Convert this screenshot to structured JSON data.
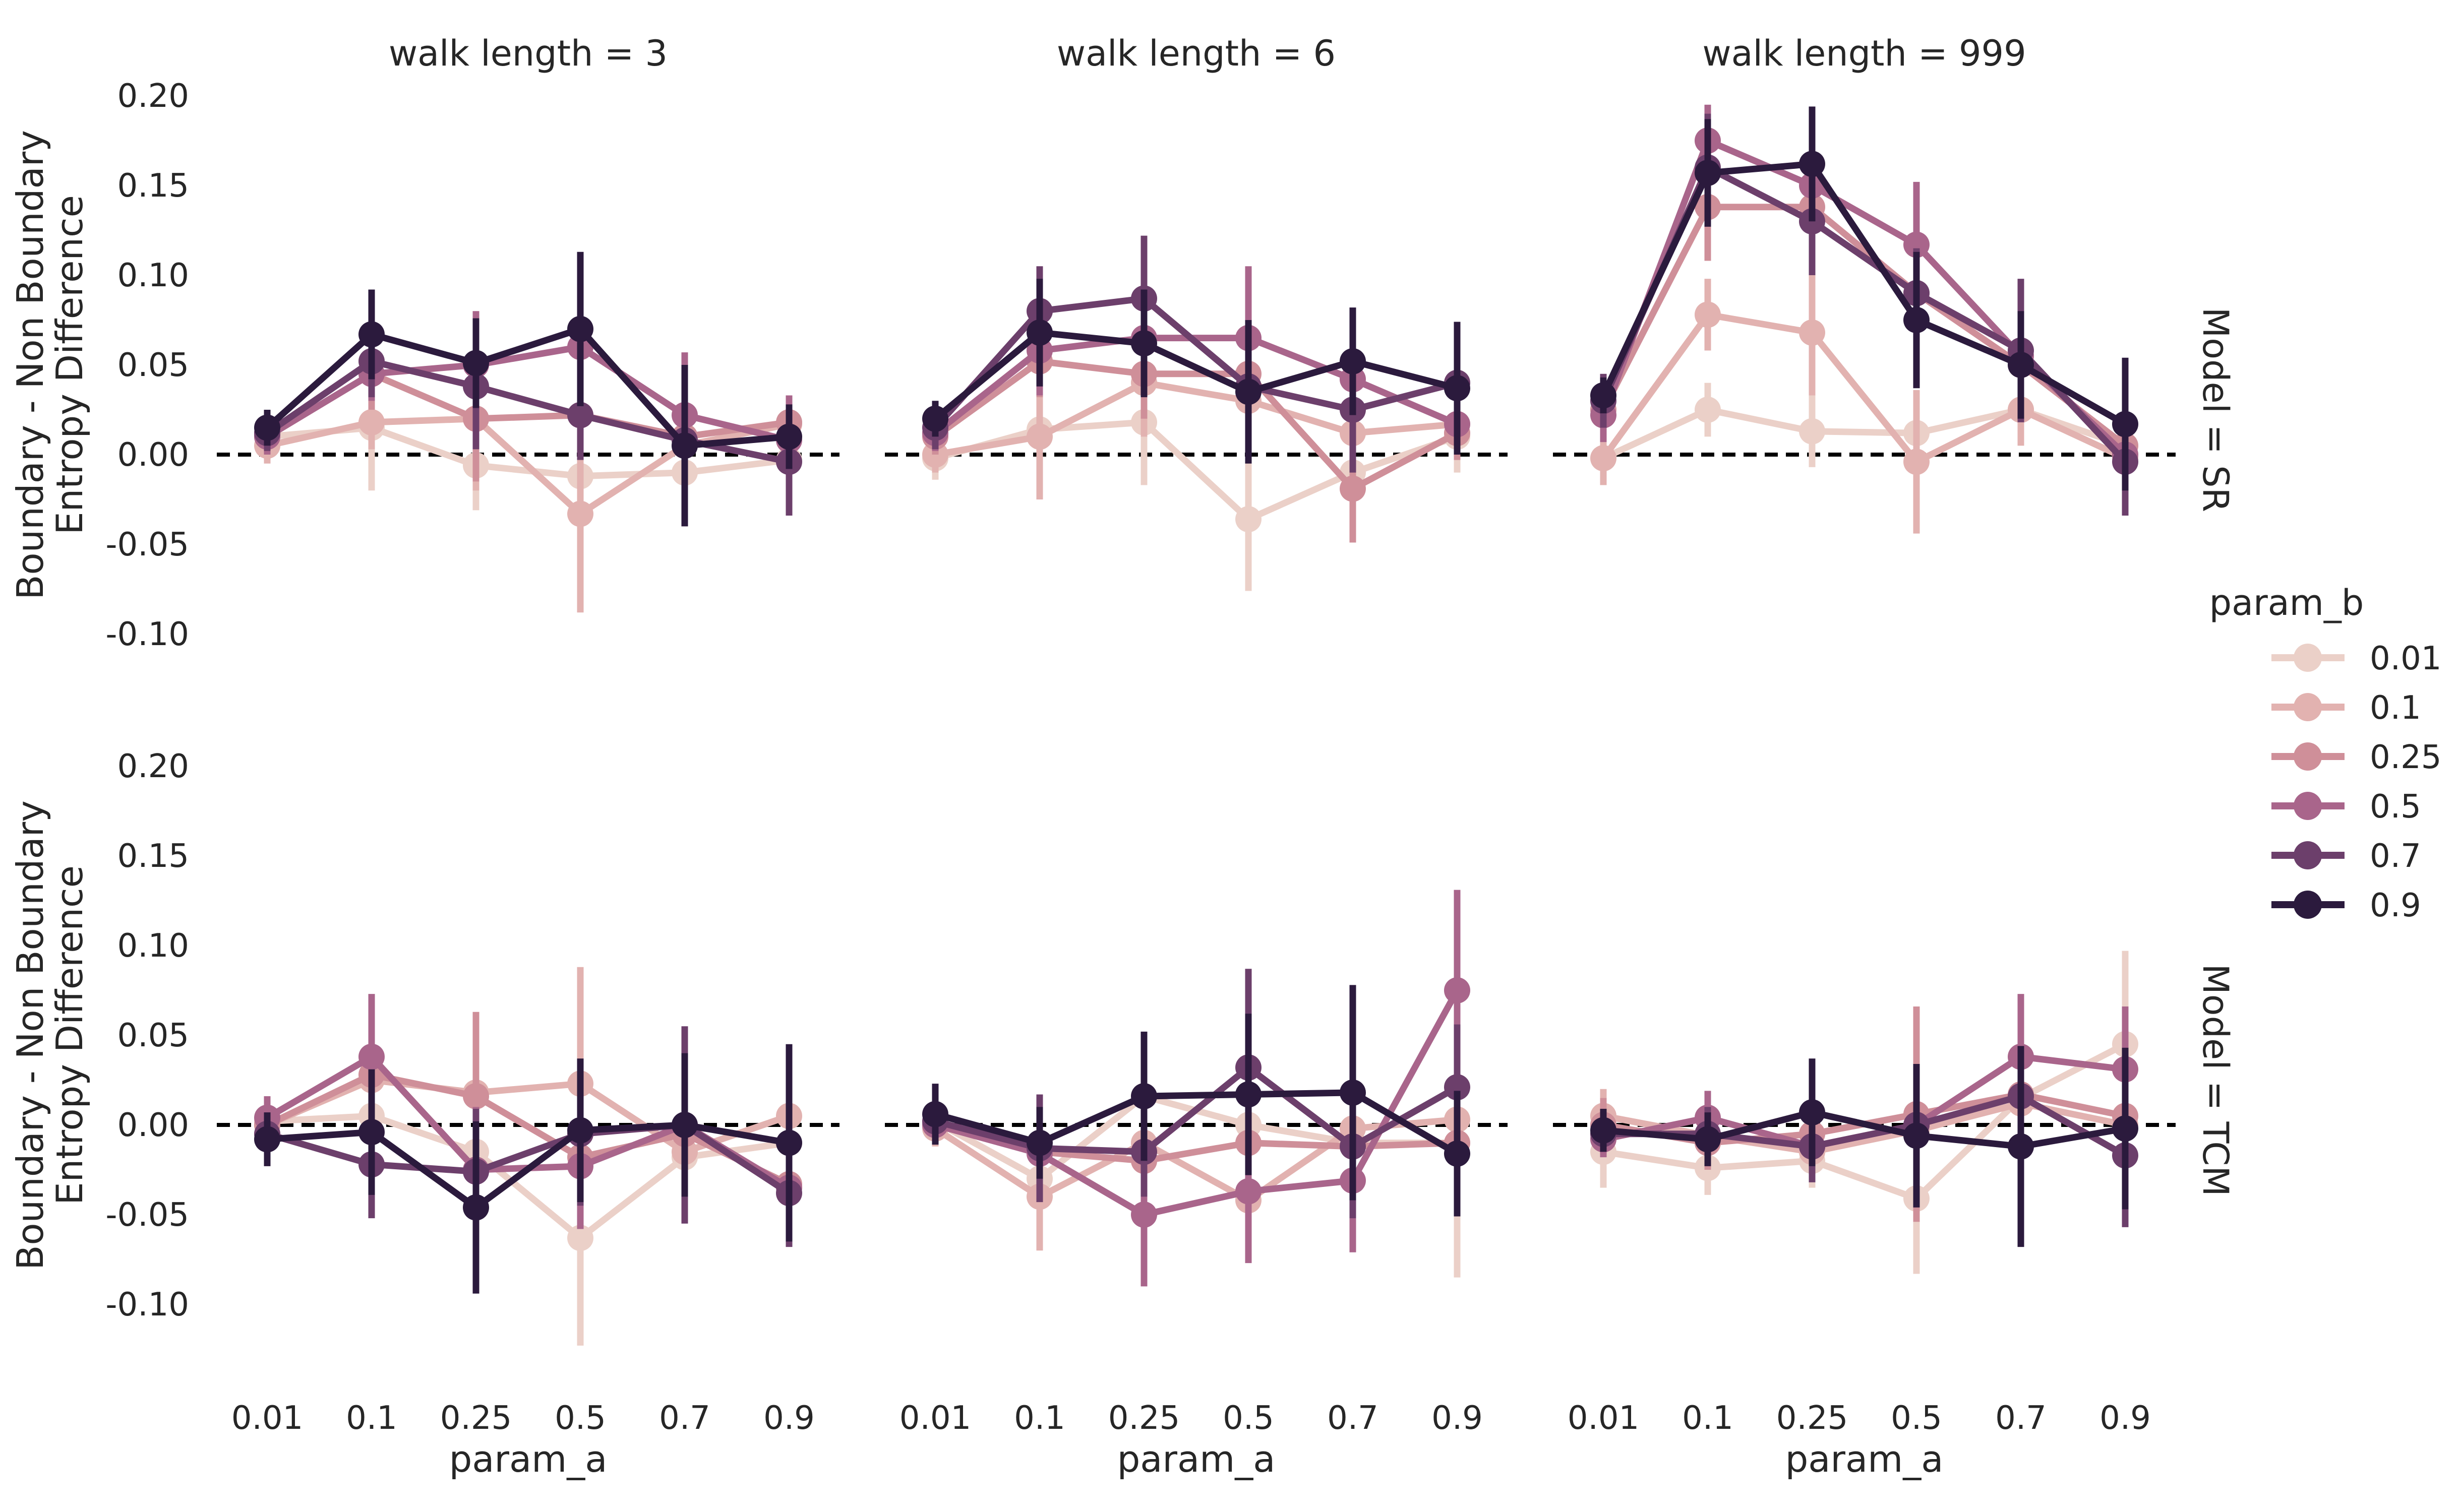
{
  "chart_data": {
    "type": "line",
    "x_label": "param_a",
    "y_label_lines": [
      "Boundary - Non Boundary",
      "Entropy Difference"
    ],
    "x_categories": [
      "0.01",
      "0.1",
      "0.25",
      "0.5",
      "0.7",
      "0.9"
    ],
    "y_ticks": [
      "0.20",
      "0.15",
      "0.10",
      "0.05",
      "0.00",
      "-0.05",
      "-0.10"
    ],
    "y_tick_values": [
      0.2,
      0.15,
      0.1,
      0.05,
      0.0,
      -0.05,
      -0.1
    ],
    "ylim": [
      -0.13,
      0.2
    ],
    "reference_line": 0.0,
    "legend": {
      "title": "param_b",
      "placement": "right",
      "entries": [
        "0.01",
        "0.1",
        "0.25",
        "0.5",
        "0.7",
        "0.9"
      ],
      "colors": [
        "#ebd0c8",
        "#e2b2b0",
        "#cf8f99",
        "#a9658b",
        "#6c3f6b",
        "#2b1a3d"
      ]
    },
    "columns": [
      "walk length = 3",
      "walk length = 6",
      "walk length = 999"
    ],
    "rows": [
      "Model = SR",
      "Model = TCM"
    ],
    "panels": [
      {
        "column": "walk length = 3",
        "row": "Model = SR",
        "series": [
          {
            "name": "0.01",
            "values": [
              0.01,
              0.015,
              -0.006,
              -0.012,
              -0.01,
              -0.003
            ],
            "err": [
              0.008,
              0.035,
              0.025,
              0.03,
              0.03,
              0.012
            ]
          },
          {
            "name": "0.1",
            "values": [
              0.005,
              0.018,
              0.02,
              -0.033,
              0.005,
              0.017
            ],
            "err": [
              0.01,
              0.015,
              0.04,
              0.055,
              0.015,
              0.015
            ]
          },
          {
            "name": "0.25",
            "values": [
              0.01,
              0.045,
              0.02,
              0.022,
              0.01,
              0.018
            ],
            "err": [
              0.01,
              0.02,
              0.035,
              0.02,
              0.015,
              0.01
            ]
          },
          {
            "name": "0.5",
            "values": [
              0.01,
              0.045,
              0.05,
              0.06,
              0.022,
              0.008
            ],
            "err": [
              0.01,
              0.015,
              0.03,
              0.025,
              0.035,
              0.025
            ]
          },
          {
            "name": "0.7",
            "values": [
              0.012,
              0.052,
              0.038,
              0.022,
              0.008,
              -0.004
            ],
            "err": [
              0.01,
              0.02,
              0.035,
              0.025,
              0.03,
              0.03
            ]
          },
          {
            "name": "0.9",
            "values": [
              0.015,
              0.067,
              0.051,
              0.07,
              0.005,
              0.01
            ],
            "err": [
              0.01,
              0.025,
              0.025,
              0.043,
              0.045,
              0.018
            ]
          }
        ]
      },
      {
        "column": "walk length = 6",
        "row": "Model = SR",
        "series": [
          {
            "name": "0.01",
            "values": [
              -0.002,
              0.014,
              0.018,
              -0.036,
              -0.01,
              0.01
            ],
            "err": [
              0.012,
              0.025,
              0.035,
              0.04,
              0.03,
              0.02
            ]
          },
          {
            "name": "0.1",
            "values": [
              0.0,
              0.01,
              0.04,
              0.03,
              0.012,
              0.017
            ],
            "err": [
              0.01,
              0.035,
              0.03,
              0.03,
              0.025,
              0.02
            ]
          },
          {
            "name": "0.25",
            "values": [
              0.01,
              0.052,
              0.045,
              0.045,
              -0.019,
              0.012
            ],
            "err": [
              0.01,
              0.02,
              0.025,
              0.03,
              0.03,
              0.015
            ]
          },
          {
            "name": "0.5",
            "values": [
              0.012,
              0.058,
              0.065,
              0.065,
              0.042,
              0.017
            ],
            "err": [
              0.01,
              0.025,
              0.03,
              0.04,
              0.02,
              0.015
            ]
          },
          {
            "name": "0.7",
            "values": [
              0.015,
              0.08,
              0.087,
              0.038,
              0.025,
              0.04
            ],
            "err": [
              0.012,
              0.025,
              0.035,
              0.03,
              0.035,
              0.02
            ]
          },
          {
            "name": "0.9",
            "values": [
              0.02,
              0.068,
              0.062,
              0.035,
              0.052,
              0.037
            ],
            "err": [
              0.01,
              0.03,
              0.03,
              0.04,
              0.03,
              0.037
            ]
          }
        ]
      },
      {
        "column": "walk length = 999",
        "row": "Model = SR",
        "series": [
          {
            "name": "0.01",
            "values": [
              -0.002,
              0.025,
              0.013,
              0.012,
              0.025,
              0.005
            ],
            "err": [
              0.015,
              0.015,
              0.02,
              0.015,
              0.02,
              0.01
            ]
          },
          {
            "name": "0.1",
            "values": [
              -0.002,
              0.078,
              0.068,
              -0.004,
              0.025,
              -0.002
            ],
            "err": [
              0.015,
              0.02,
              0.035,
              0.04,
              0.02,
              0.01
            ]
          },
          {
            "name": "0.25",
            "values": [
              0.025,
              0.138,
              0.138,
              0.09,
              0.05,
              0.005
            ],
            "err": [
              0.015,
              0.03,
              0.035,
              0.03,
              0.02,
              0.015
            ]
          },
          {
            "name": "0.5",
            "values": [
              0.022,
              0.175,
              0.15,
              0.117,
              0.055,
              0.0
            ],
            "err": [
              0.015,
              0.02,
              0.03,
              0.035,
              0.03,
              0.02
            ]
          },
          {
            "name": "0.7",
            "values": [
              0.03,
              0.16,
              0.13,
              0.09,
              0.058,
              -0.004
            ],
            "err": [
              0.015,
              0.03,
              0.03,
              0.025,
              0.04,
              0.03
            ]
          },
          {
            "name": "0.9",
            "values": [
              0.033,
              0.157,
              0.162,
              0.075,
              0.05,
              0.017
            ],
            "err": [
              0.01,
              0.03,
              0.032,
              0.038,
              0.03,
              0.037
            ]
          }
        ]
      },
      {
        "column": "walk length = 3",
        "row": "Model = TCM",
        "series": [
          {
            "name": "0.01",
            "values": [
              0.002,
              0.005,
              -0.015,
              -0.063,
              -0.018,
              -0.01
            ],
            "err": [
              0.01,
              0.025,
              0.03,
              0.06,
              0.025,
              0.025
            ]
          },
          {
            "name": "0.1",
            "values": [
              0.0,
              0.025,
              0.018,
              0.023,
              -0.015,
              0.005
            ],
            "err": [
              0.01,
              0.02,
              0.03,
              0.065,
              0.035,
              0.025
            ]
          },
          {
            "name": "0.25",
            "values": [
              0.0,
              0.028,
              0.016,
              -0.018,
              -0.005,
              -0.033
            ],
            "err": [
              0.01,
              0.03,
              0.047,
              0.035,
              0.03,
              0.03
            ]
          },
          {
            "name": "0.5",
            "values": [
              0.004,
              0.038,
              -0.025,
              -0.023,
              0.0,
              -0.035
            ],
            "err": [
              0.012,
              0.035,
              0.035,
              0.035,
              0.02,
              0.03
            ]
          },
          {
            "name": "0.7",
            "values": [
              -0.005,
              -0.022,
              -0.026,
              -0.005,
              0.0,
              -0.038
            ],
            "err": [
              0.012,
              0.03,
              0.035,
              0.04,
              0.055,
              0.03
            ]
          },
          {
            "name": "0.9",
            "values": [
              -0.008,
              -0.004,
              -0.046,
              -0.003,
              0.0,
              -0.01
            ],
            "err": [
              0.015,
              0.035,
              0.048,
              0.04,
              0.04,
              0.055
            ]
          }
        ]
      },
      {
        "column": "walk length = 6",
        "row": "Model = TCM",
        "series": [
          {
            "name": "0.01",
            "values": [
              0.002,
              -0.03,
              0.016,
              0.0,
              -0.01,
              -0.01
            ],
            "err": [
              0.01,
              0.025,
              0.035,
              0.03,
              0.025,
              0.075
            ]
          },
          {
            "name": "0.1",
            "values": [
              -0.002,
              -0.04,
              -0.01,
              -0.042,
              -0.002,
              0.003
            ],
            "err": [
              0.01,
              0.03,
              0.03,
              0.03,
              0.025,
              0.02
            ]
          },
          {
            "name": "0.25",
            "values": [
              0.0,
              -0.015,
              -0.02,
              -0.01,
              -0.012,
              -0.01
            ],
            "err": [
              0.01,
              0.02,
              0.03,
              0.03,
              0.02,
              0.02
            ]
          },
          {
            "name": "0.5",
            "values": [
              0.0,
              -0.016,
              -0.05,
              -0.037,
              -0.031,
              0.075
            ],
            "err": [
              0.01,
              0.025,
              0.04,
              0.04,
              0.04,
              0.056
            ]
          },
          {
            "name": "0.7",
            "values": [
              0.002,
              -0.013,
              -0.015,
              0.032,
              -0.012,
              0.021
            ],
            "err": [
              0.01,
              0.03,
              0.025,
              0.055,
              0.04,
              0.035
            ]
          },
          {
            "name": "0.9",
            "values": [
              0.006,
              -0.01,
              0.016,
              0.017,
              0.018,
              -0.016
            ],
            "err": [
              0.017,
              0.02,
              0.036,
              0.045,
              0.06,
              0.035
            ]
          }
        ]
      },
      {
        "column": "walk length = 999",
        "row": "Model = TCM",
        "series": [
          {
            "name": "0.01",
            "values": [
              -0.015,
              -0.024,
              -0.02,
              -0.041,
              0.015,
              0.045
            ],
            "err": [
              0.02,
              0.015,
              0.015,
              0.042,
              0.02,
              0.052
            ]
          },
          {
            "name": "0.1",
            "values": [
              0.005,
              -0.006,
              -0.015,
              -0.003,
              0.012,
              0.0
            ],
            "err": [
              0.015,
              0.015,
              0.015,
              0.035,
              0.02,
              0.03
            ]
          },
          {
            "name": "0.25",
            "values": [
              0.0,
              -0.01,
              -0.005,
              0.006,
              0.017,
              0.005
            ],
            "err": [
              0.015,
              0.015,
              0.015,
              0.06,
              0.025,
              0.02
            ]
          },
          {
            "name": "0.5",
            "values": [
              -0.008,
              0.004,
              -0.012,
              0.0,
              0.038,
              0.031
            ],
            "err": [
              0.01,
              0.015,
              0.015,
              0.03,
              0.035,
              0.035
            ]
          },
          {
            "name": "0.7",
            "values": [
              -0.005,
              -0.005,
              -0.012,
              0.0,
              0.016,
              -0.017
            ],
            "err": [
              0.01,
              0.015,
              0.02,
              0.03,
              0.025,
              0.04
            ]
          },
          {
            "name": "0.9",
            "values": [
              -0.003,
              -0.008,
              0.007,
              -0.006,
              -0.012,
              -0.002
            ],
            "err": [
              0.012,
              0.015,
              0.03,
              0.04,
              0.056,
              0.045
            ]
          }
        ]
      }
    ]
  }
}
